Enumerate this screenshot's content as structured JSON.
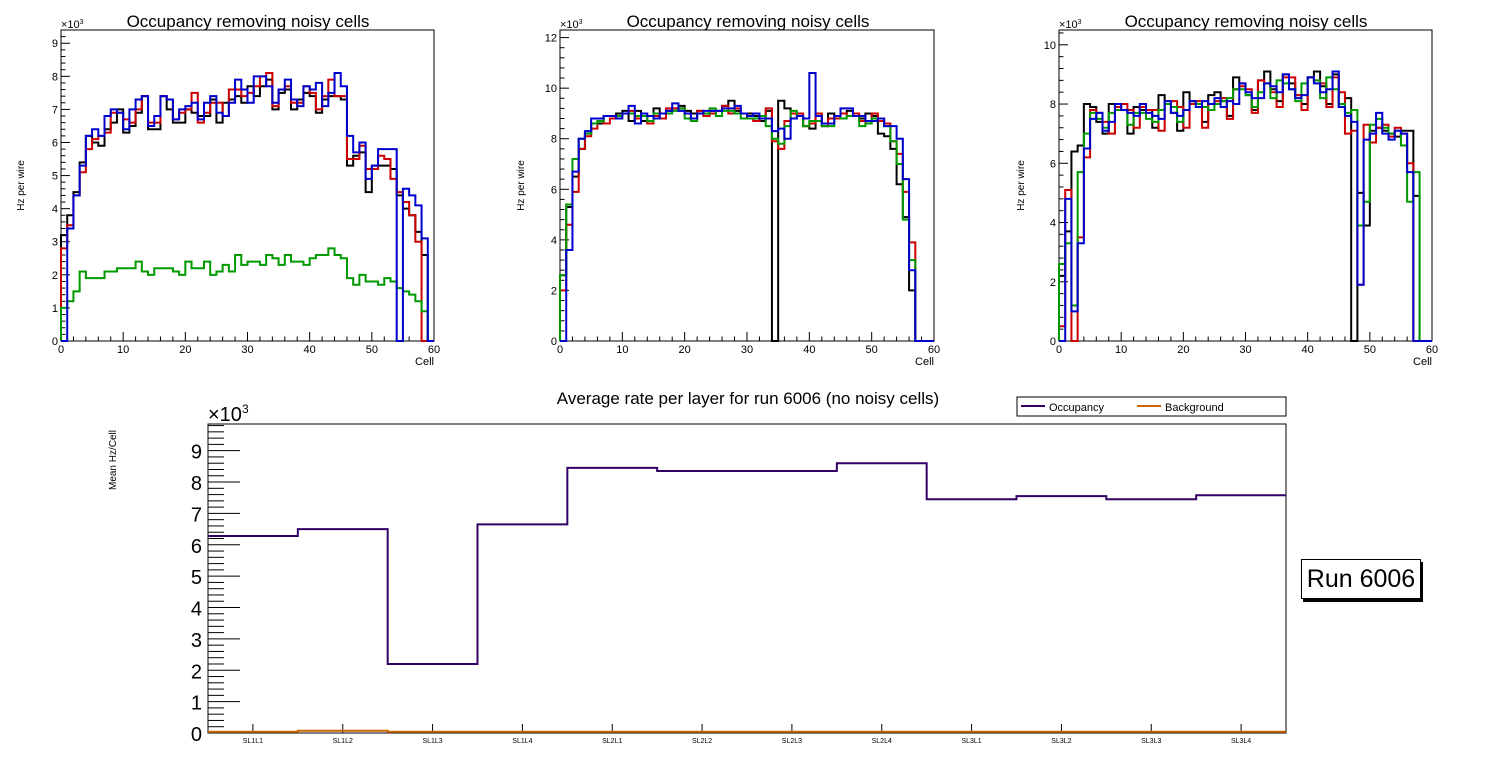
{
  "chart_data": [
    {
      "type": "line",
      "subtype": "step-histogram",
      "title": "Occupancy removing noisy cells",
      "xlabel": "Cell",
      "ylabel": "Hz per wire",
      "y_multiplier": "×10^3",
      "xlim": [
        0,
        60
      ],
      "ylim": [
        0,
        9.4
      ],
      "xticks": [
        0,
        10,
        20,
        30,
        40,
        50,
        60
      ],
      "yticks": [
        0,
        1,
        2,
        3,
        4,
        5,
        6,
        7,
        8,
        9
      ],
      "series": [
        {
          "name": "black",
          "color": "#000000",
          "values": [
            3.2,
            3.8,
            4.5,
            5.4,
            6.2,
            6.0,
            5.9,
            6.4,
            6.6,
            7.0,
            6.3,
            6.5,
            6.9,
            7.4,
            6.4,
            6.4,
            7.4,
            7.0,
            6.6,
            6.6,
            7.0,
            6.9,
            6.8,
            6.8,
            7.3,
            6.6,
            7.2,
            7.3,
            7.4,
            7.2,
            7.7,
            7.4,
            7.7,
            7.9,
            7.0,
            7.5,
            7.6,
            7.0,
            7.3,
            7.5,
            7.4,
            6.9,
            7.3,
            7.4,
            7.4,
            7.3,
            5.3,
            5.6,
            5.7,
            4.5,
            5.3,
            5.3,
            5.3,
            5.2,
            4.4,
            4.0,
            3.8,
            3.3,
            2.6,
            0
          ]
        },
        {
          "name": "red",
          "color": "#cc0000",
          "values": [
            2.8,
            3.5,
            4.4,
            5.1,
            5.8,
            6.1,
            6.2,
            6.3,
            6.9,
            6.9,
            6.7,
            6.6,
            7.0,
            7.4,
            6.6,
            6.6,
            7.4,
            7.3,
            6.7,
            6.9,
            7.0,
            7.5,
            6.6,
            6.9,
            7.2,
            7.2,
            6.8,
            7.6,
            7.6,
            7.4,
            7.5,
            7.7,
            8.0,
            8.1,
            7.1,
            7.6,
            7.7,
            7.2,
            7.2,
            7.7,
            7.5,
            7.0,
            7.4,
            7.9,
            7.4,
            7.4,
            5.5,
            5.5,
            5.9,
            5.2,
            5.2,
            5.6,
            5.5,
            4.9,
            4.5,
            4.2,
            3.8,
            3.0,
            0,
            0
          ]
        },
        {
          "name": "green",
          "color": "#009900",
          "values": [
            1.0,
            1.2,
            1.5,
            2.1,
            1.9,
            1.9,
            1.9,
            2.1,
            2.1,
            2.2,
            2.2,
            2.2,
            2.4,
            2.1,
            2.0,
            2.2,
            2.2,
            2.2,
            2.1,
            2.0,
            2.4,
            2.2,
            2.2,
            2.4,
            2.0,
            2.1,
            2.3,
            2.1,
            2.6,
            2.3,
            2.4,
            2.4,
            2.3,
            2.6,
            2.5,
            2.3,
            2.6,
            2.4,
            2.4,
            2.3,
            2.5,
            2.6,
            2.6,
            2.8,
            2.6,
            2.5,
            1.9,
            1.7,
            2.0,
            1.8,
            1.8,
            1.7,
            1.9,
            1.8,
            1.6,
            1.5,
            1.4,
            1.2,
            0.9,
            0
          ]
        },
        {
          "name": "blue",
          "color": "#0000cc",
          "values": [
            0,
            3.4,
            4.4,
            5.3,
            6.2,
            6.4,
            6.2,
            6.8,
            7.0,
            6.9,
            6.4,
            7.0,
            7.3,
            7.4,
            6.5,
            6.8,
            7.4,
            7.3,
            6.7,
            7.0,
            7.1,
            7.2,
            6.7,
            7.2,
            7.4,
            6.9,
            6.8,
            7.2,
            7.9,
            7.6,
            7.2,
            8.0,
            8.0,
            7.7,
            7.2,
            7.6,
            7.9,
            7.3,
            7.1,
            7.7,
            7.6,
            7.8,
            7.1,
            7.5,
            8.1,
            7.7,
            6.2,
            5.7,
            6.0,
            4.9,
            5.3,
            5.8,
            5.8,
            5.8,
            0,
            4.6,
            4.4,
            4.1,
            3.1,
            0
          ]
        }
      ]
    },
    {
      "type": "line",
      "subtype": "step-histogram",
      "title": "Occupancy removing noisy cells",
      "xlabel": "Cell",
      "ylabel": "Hz per wire",
      "y_multiplier": "×10^3",
      "xlim": [
        0,
        60
      ],
      "ylim": [
        0,
        12.3
      ],
      "xticks": [
        0,
        10,
        20,
        30,
        40,
        50,
        60
      ],
      "yticks": [
        0,
        2,
        4,
        6,
        8,
        10,
        12
      ],
      "series": [
        {
          "name": "black",
          "color": "#000000",
          "values": [
            2.6,
            5.3,
            6.5,
            7.6,
            8.2,
            8.6,
            8.6,
            8.9,
            8.9,
            9.0,
            9.1,
            8.7,
            9.1,
            8.7,
            8.7,
            9.2,
            9.0,
            9.1,
            9.2,
            9.3,
            9.1,
            9.0,
            9.1,
            9.0,
            9.1,
            9.1,
            9.3,
            9.5,
            9.1,
            9.0,
            9.0,
            8.9,
            8.7,
            9.1,
            0,
            9.5,
            9.2,
            9.0,
            8.9,
            8.5,
            8.4,
            9.0,
            8.5,
            9.0,
            8.9,
            9.0,
            9.1,
            8.9,
            8.8,
            9.0,
            8.9,
            8.2,
            8.1,
            7.6,
            6.2,
            4.9,
            2.0,
            0,
            0,
            0
          ]
        },
        {
          "name": "red",
          "color": "#cc0000",
          "values": [
            2.0,
            4.6,
            5.9,
            7.6,
            8.1,
            8.4,
            8.7,
            8.6,
            8.8,
            8.9,
            9.0,
            9.1,
            8.8,
            8.9,
            8.6,
            8.9,
            8.8,
            9.2,
            9.2,
            9.2,
            9.0,
            8.8,
            9.1,
            8.9,
            9.0,
            9.1,
            9.3,
            9.0,
            9.2,
            9.0,
            8.8,
            8.7,
            8.9,
            9.2,
            7.9,
            7.6,
            8.7,
            9.0,
            9.0,
            8.5,
            8.6,
            9.0,
            8.5,
            8.8,
            8.8,
            9.0,
            8.9,
            9.0,
            8.7,
            8.6,
            9.0,
            8.7,
            8.6,
            7.9,
            7.4,
            5.9,
            3.9,
            0,
            0,
            0
          ]
        },
        {
          "name": "green",
          "color": "#009900",
          "values": [
            2.6,
            5.4,
            7.2,
            8.0,
            8.2,
            8.6,
            8.7,
            8.9,
            8.9,
            8.9,
            9.0,
            9.0,
            8.9,
            8.9,
            8.7,
            9.0,
            9.0,
            9.0,
            9.1,
            9.2,
            8.8,
            8.7,
            9.0,
            9.0,
            9.2,
            8.9,
            9.1,
            9.1,
            9.0,
            8.8,
            8.8,
            8.8,
            8.9,
            8.5,
            8.0,
            7.8,
            8.5,
            9.1,
            8.9,
            8.5,
            8.7,
            8.7,
            8.5,
            8.5,
            8.9,
            8.8,
            8.9,
            8.9,
            8.5,
            8.6,
            8.8,
            8.8,
            8.5,
            7.9,
            7.0,
            4.8,
            3.2,
            0,
            0,
            0
          ]
        },
        {
          "name": "blue",
          "color": "#0000cc",
          "values": [
            0,
            3.6,
            6.7,
            8.0,
            8.3,
            8.8,
            8.8,
            8.9,
            8.9,
            8.8,
            9.0,
            9.3,
            8.6,
            9.0,
            8.9,
            8.8,
            9.0,
            9.1,
            9.4,
            9.1,
            9.0,
            8.8,
            9.0,
            9.1,
            9.1,
            9.1,
            9.2,
            9.2,
            9.3,
            9.0,
            8.9,
            9.0,
            8.8,
            8.8,
            8.3,
            8.4,
            8.0,
            8.8,
            8.9,
            8.8,
            10.6,
            8.9,
            8.6,
            8.6,
            8.9,
            9.2,
            9.2,
            8.9,
            8.9,
            8.7,
            8.7,
            8.8,
            8.5,
            8.5,
            8.0,
            6.4,
            2.8,
            0,
            0,
            0
          ]
        }
      ]
    },
    {
      "type": "line",
      "subtype": "step-histogram",
      "title": "Occupancy removing noisy cells",
      "xlabel": "Cell",
      "ylabel": "Hz per wire",
      "y_multiplier": "×10^3",
      "xlim": [
        0,
        60
      ],
      "ylim": [
        0,
        10.5
      ],
      "xticks": [
        0,
        10,
        20,
        30,
        40,
        50,
        60
      ],
      "yticks": [
        0,
        2,
        4,
        6,
        8,
        10
      ],
      "series": [
        {
          "name": "black",
          "color": "#000000",
          "values": [
            2.2,
            3.7,
            6.4,
            6.6,
            8.0,
            7.9,
            7.4,
            7.0,
            8.0,
            7.9,
            7.8,
            7.0,
            7.9,
            7.8,
            7.8,
            7.2,
            8.3,
            8.0,
            7.7,
            7.1,
            8.4,
            8.1,
            8.0,
            7.4,
            8.3,
            8.4,
            8.1,
            7.6,
            8.9,
            8.7,
            8.3,
            7.8,
            8.8,
            9.1,
            8.5,
            8.1,
            9.0,
            8.7,
            8.3,
            8.0,
            8.9,
            9.1,
            8.6,
            8.0,
            9.0,
            7.9,
            8.2,
            0,
            5.0,
            3.9,
            7.1,
            7.2,
            7.1,
            7.0,
            6.9,
            7.1,
            7.1,
            4.9,
            0,
            0
          ]
        },
        {
          "name": "red",
          "color": "#cc0000",
          "values": [
            0.5,
            5.1,
            0,
            3.5,
            6.2,
            7.8,
            7.7,
            7.4,
            7.0,
            7.9,
            8.0,
            7.8,
            7.2,
            7.9,
            7.8,
            7.8,
            7.1,
            8.0,
            8.1,
            7.9,
            7.2,
            8.0,
            8.1,
            7.2,
            8.0,
            8.1,
            8.2,
            7.5,
            8.5,
            8.6,
            8.5,
            7.7,
            8.8,
            8.7,
            8.4,
            7.9,
            8.9,
            8.9,
            8.3,
            7.8,
            8.9,
            8.8,
            8.7,
            7.9,
            8.9,
            8.4,
            7.0,
            7.1,
            1.9,
            7.3,
            6.7,
            7.2,
            7.3,
            6.9,
            7.2,
            7.0,
            6.0,
            0,
            0,
            0
          ]
        },
        {
          "name": "green",
          "color": "#009900",
          "values": [
            2.6,
            3.3,
            1.2,
            5.7,
            7.0,
            7.7,
            7.5,
            7.2,
            7.7,
            7.8,
            7.8,
            7.3,
            7.7,
            7.7,
            7.5,
            7.4,
            7.8,
            8.0,
            7.9,
            7.4,
            7.8,
            8.1,
            8.0,
            7.9,
            7.8,
            8.0,
            8.1,
            8.2,
            8.5,
            8.5,
            8.3,
            7.9,
            8.4,
            8.7,
            8.2,
            8.8,
            8.7,
            8.5,
            8.1,
            8.7,
            8.9,
            8.8,
            8.2,
            8.9,
            8.5,
            8.0,
            7.7,
            7.8,
            3.9,
            4.7,
            7.3,
            7.5,
            7.2,
            7.0,
            7.1,
            6.6,
            4.7,
            5.7,
            0,
            0
          ]
        },
        {
          "name": "blue",
          "color": "#0000cc",
          "values": [
            0,
            4.8,
            1.0,
            3.3,
            6.5,
            7.5,
            7.7,
            7.1,
            7.4,
            8.0,
            7.8,
            7.7,
            7.6,
            8.0,
            7.7,
            7.6,
            7.5,
            8.1,
            7.7,
            7.6,
            7.8,
            8.1,
            7.9,
            8.1,
            8.0,
            8.2,
            7.9,
            8.1,
            8.0,
            8.7,
            8.4,
            8.2,
            8.2,
            8.7,
            8.6,
            8.4,
            9.0,
            8.5,
            8.2,
            8.3,
            8.9,
            8.7,
            8.4,
            8.5,
            9.1,
            7.9,
            7.6,
            7.4,
            1.9,
            6.8,
            7.0,
            7.7,
            7.0,
            6.8,
            7.1,
            7.0,
            5.7,
            0,
            0,
            0
          ]
        }
      ]
    },
    {
      "type": "line",
      "subtype": "step-histogram",
      "title": "Average rate per layer for run 6006 (no noisy cells)",
      "xlabel": "",
      "ylabel": "Mean Hz/Cell",
      "y_multiplier": "×10^3",
      "categories": [
        "SL1L1",
        "SL1L2",
        "SL1L3",
        "SL1L4",
        "SL2L1",
        "SL2L2",
        "SL2L3",
        "SL2L4",
        "SL3L1",
        "SL3L2",
        "SL3L3",
        "SL3L4"
      ],
      "ylim": [
        0,
        9.85
      ],
      "yticks": [
        0,
        1,
        2,
        3,
        4,
        5,
        6,
        7,
        8,
        9
      ],
      "legend_position": "top-right",
      "series": [
        {
          "name": "Occupancy",
          "color": "#330066",
          "values": [
            6.28,
            6.5,
            2.2,
            6.65,
            8.45,
            8.35,
            8.35,
            8.6,
            7.45,
            7.55,
            7.45,
            7.58
          ]
        },
        {
          "name": "Background",
          "color": "#cc6600",
          "values": [
            0.04,
            0.07,
            0.04,
            0.04,
            0.04,
            0.04,
            0.04,
            0.04,
            0.04,
            0.04,
            0.04,
            0.04
          ]
        }
      ]
    }
  ],
  "annotation": {
    "run_label": "Run 6006"
  }
}
